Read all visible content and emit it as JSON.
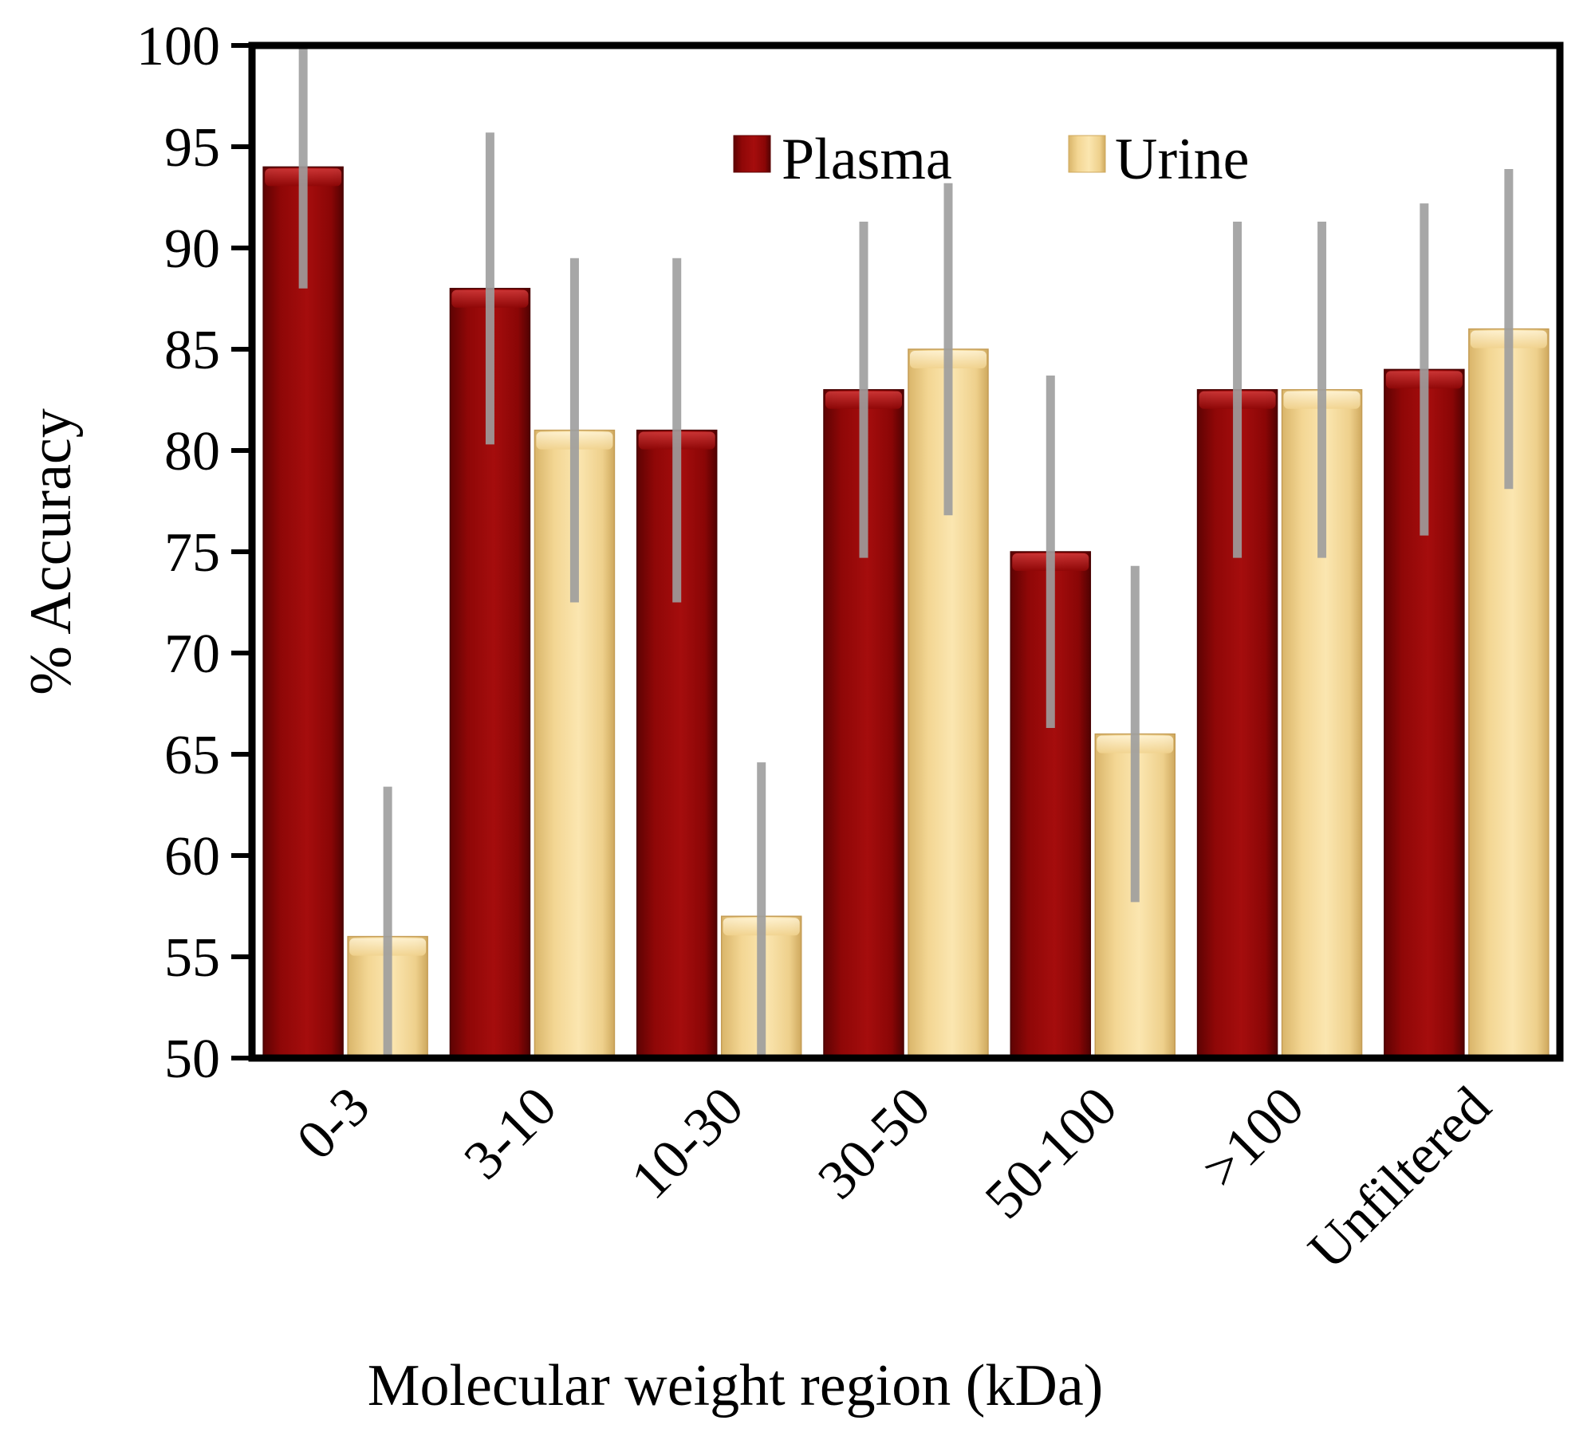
{
  "chart_data": {
    "type": "bar",
    "title": "",
    "xlabel": "Molecular weight region (kDa)",
    "ylabel": "% Accuracy",
    "ylim": [
      50,
      100
    ],
    "yticks": [
      "50",
      "55",
      "60",
      "65",
      "70",
      "75",
      "80",
      "85",
      "90",
      "95",
      "100"
    ],
    "grid": false,
    "legend_position": "top-right",
    "categories": [
      "0-3",
      "3-10",
      "10-30",
      "30-50",
      "50-100",
      ">100",
      "Unfiltered"
    ],
    "series": [
      {
        "name": "Plasma",
        "color": "#9b0a0a",
        "values": [
          94,
          88,
          81,
          83,
          75,
          83,
          84
        ],
        "error": [
          6,
          7.7,
          8.5,
          8.3,
          8.7,
          8.3,
          8.2
        ]
      },
      {
        "name": "Urine",
        "color": "#f7dc9a",
        "values": [
          56,
          81,
          57,
          85,
          66,
          83,
          86
        ],
        "error": [
          7.4,
          8.5,
          7.6,
          8.2,
          8.3,
          8.3,
          7.9
        ]
      }
    ],
    "error_bar_color": "#9e9e9e"
  }
}
